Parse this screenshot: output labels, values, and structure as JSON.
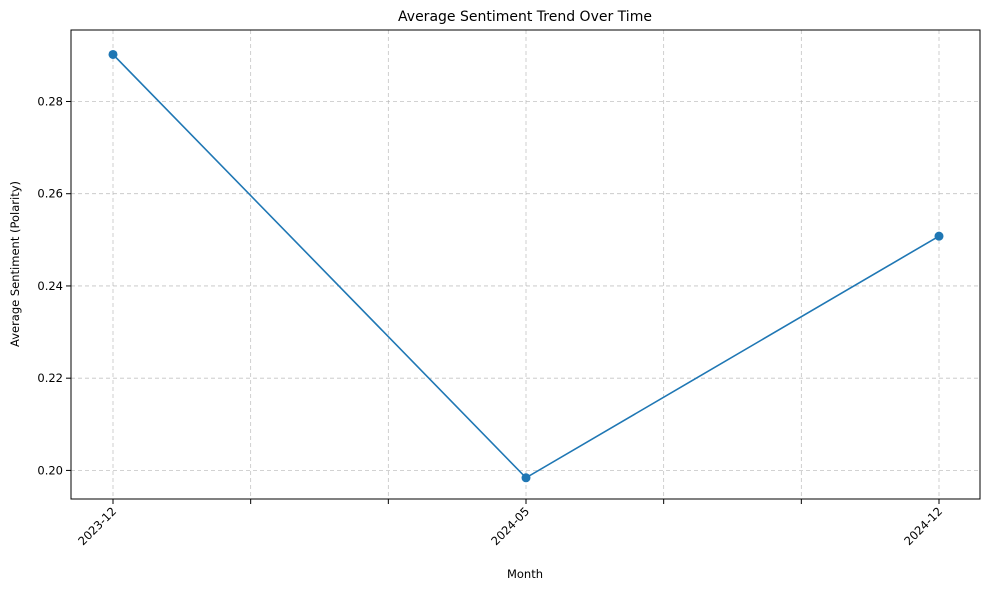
{
  "chart_data": {
    "type": "line",
    "title": "Average Sentiment Trend Over Time",
    "xlabel": "Month",
    "ylabel": "Average Sentiment (Polarity)",
    "x": [
      "2023-12",
      "2024-05",
      "2024-12"
    ],
    "x_tick_labels": [
      "2023-12",
      "2024-05",
      "2024-12"
    ],
    "x_minor_ticks_between": [
      2,
      2
    ],
    "series": [
      {
        "values": [
          0.2902,
          0.1984,
          0.2508
        ],
        "color": "#1f77b4",
        "marker": "circle"
      }
    ],
    "ylim": [
      0.1938,
      0.2955
    ],
    "y_ticks": [
      0.2,
      0.22,
      0.24,
      0.26,
      0.28
    ],
    "y_tick_labels": [
      "0.20",
      "0.22",
      "0.24",
      "0.26",
      "0.28"
    ],
    "grid": true,
    "x_tick_rotation": "45deg"
  }
}
